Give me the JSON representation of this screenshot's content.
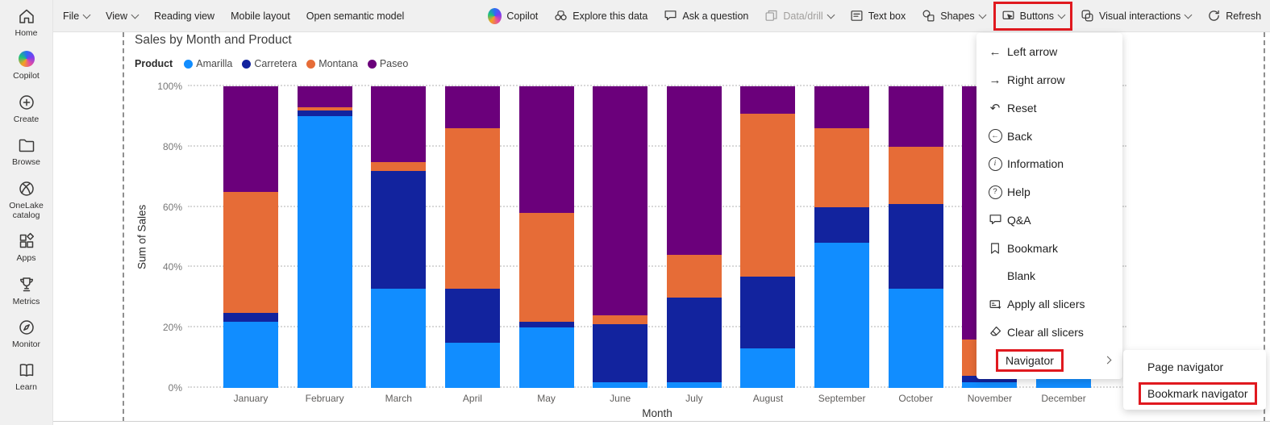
{
  "colors": {
    "highlight_red": "#e0191f",
    "ribbon_bg": "#f0f0f0",
    "canvas_bg": "#ffffff"
  },
  "sidebar": {
    "items": [
      {
        "icon": "home",
        "label": "Home"
      },
      {
        "icon": "copilot",
        "label": "Copilot"
      },
      {
        "icon": "create",
        "label": "Create"
      },
      {
        "icon": "browse",
        "label": "Browse"
      },
      {
        "icon": "onelake",
        "label": "OneLake catalog"
      },
      {
        "icon": "apps",
        "label": "Apps"
      },
      {
        "icon": "metrics",
        "label": "Metrics"
      },
      {
        "icon": "monitor",
        "label": "Monitor"
      },
      {
        "icon": "learn",
        "label": "Learn"
      }
    ]
  },
  "ribbon": {
    "items": [
      {
        "label": "File",
        "chevron": true
      },
      {
        "label": "View",
        "chevron": true
      },
      {
        "label": "Reading view"
      },
      {
        "label": "Mobile layout"
      },
      {
        "label": "Open semantic model"
      },
      {
        "icon": "copilot",
        "label": "Copilot",
        "gap_before": true
      },
      {
        "icon": "explore",
        "label": "Explore this data"
      },
      {
        "icon": "ask",
        "label": "Ask a question"
      },
      {
        "icon": "drill",
        "label": "Data/drill",
        "chevron": true,
        "disabled": true
      },
      {
        "icon": "textbox",
        "label": "Text box"
      },
      {
        "icon": "shapes",
        "label": "Shapes",
        "chevron": true
      },
      {
        "icon": "buttons",
        "label": "Buttons",
        "chevron": true,
        "highlighted": true
      },
      {
        "icon": "visual-interactions",
        "label": "Visual interactions",
        "chevron": true
      },
      {
        "icon": "refresh",
        "label": "Refresh"
      }
    ],
    "save_icon": "save"
  },
  "buttons_menu": {
    "items": [
      {
        "icon": "left-arrow",
        "label": "Left arrow"
      },
      {
        "icon": "right-arrow",
        "label": "Right arrow"
      },
      {
        "icon": "reset",
        "label": "Reset"
      },
      {
        "icon": "back",
        "label": "Back"
      },
      {
        "icon": "info",
        "label": "Information"
      },
      {
        "icon": "help",
        "label": "Help"
      },
      {
        "icon": "qa",
        "label": "Q&A"
      },
      {
        "icon": "bookmark",
        "label": "Bookmark"
      },
      {
        "icon": null,
        "label": "Blank"
      },
      {
        "icon": "apply-slicers",
        "label": "Apply all slicers"
      },
      {
        "icon": "clear-slicers",
        "label": "Clear all slicers"
      },
      {
        "icon": null,
        "label": "Navigator",
        "submenu": true,
        "highlighted": true
      }
    ]
  },
  "navigator_submenu": {
    "items": [
      {
        "label": "Page navigator"
      },
      {
        "label": "Bookmark navigator",
        "highlighted": true
      }
    ]
  },
  "chart_data": {
    "type": "bar",
    "variant": "100%-stacked-column",
    "title": "Sales by Month and Product",
    "legend_title": "Product",
    "legend_position": "top-left",
    "xlabel": "Month",
    "ylabel": "Sum of Sales",
    "ylim": [
      0,
      100
    ],
    "y_ticks": [
      "0%",
      "20%",
      "40%",
      "60%",
      "80%",
      "100%"
    ],
    "grid": "dotted-horizontal",
    "categories": [
      "January",
      "February",
      "March",
      "April",
      "May",
      "June",
      "July",
      "August",
      "September",
      "October",
      "November",
      "December"
    ],
    "series": [
      {
        "name": "Amarilla",
        "color": "#118DFF",
        "values": [
          22,
          90,
          33,
          15,
          20,
          2,
          2,
          13,
          48,
          33,
          2,
          8
        ]
      },
      {
        "name": "Carretera",
        "color": "#12239E",
        "values": [
          3,
          2,
          39,
          18,
          2,
          19,
          28,
          24,
          12,
          28,
          2,
          10
        ]
      },
      {
        "name": "Montana",
        "color": "#E66C37",
        "values": [
          40,
          1,
          3,
          53,
          36,
          3,
          14,
          54,
          26,
          19,
          12,
          30
        ]
      },
      {
        "name": "Paseo",
        "color": "#6B007B",
        "values": [
          35,
          7,
          25,
          14,
          42,
          76,
          56,
          9,
          14,
          20,
          84,
          52
        ]
      }
    ],
    "note": "November and December bars partially obscured by open Buttons menu"
  }
}
